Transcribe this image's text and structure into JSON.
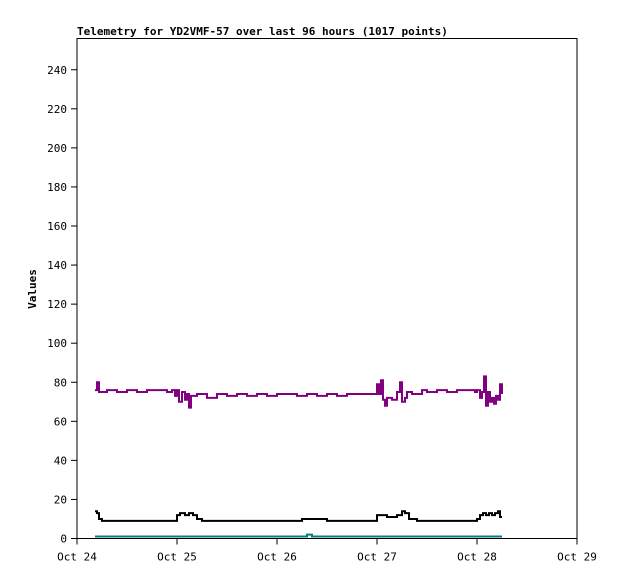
{
  "chart_data": {
    "type": "line",
    "title": "Telemetry for YD2VMF-57 over last 96 hours (1017 points)",
    "xlabel": "",
    "ylabel": "Values",
    "x_ticks": [
      "Oct 24",
      "Oct 25",
      "Oct 26",
      "Oct 27",
      "Oct 28",
      "Oct 29"
    ],
    "y_ticks": [
      0,
      20,
      40,
      60,
      80,
      100,
      120,
      140,
      160,
      180,
      200,
      220,
      240
    ],
    "xlim": [
      24.0,
      29.0
    ],
    "ylim": [
      0,
      256
    ],
    "grid": false,
    "legend": "none",
    "series": [
      {
        "color": "#800080",
        "points": [
          [
            24.18,
            76
          ],
          [
            24.2,
            80
          ],
          [
            24.22,
            75
          ],
          [
            24.3,
            76
          ],
          [
            24.4,
            75
          ],
          [
            24.5,
            76
          ],
          [
            24.6,
            75
          ],
          [
            24.7,
            76
          ],
          [
            24.8,
            76
          ],
          [
            24.9,
            75
          ],
          [
            24.95,
            76
          ],
          [
            24.98,
            73
          ],
          [
            25.0,
            76
          ],
          [
            25.02,
            70
          ],
          [
            25.05,
            75
          ],
          [
            25.08,
            71
          ],
          [
            25.1,
            74
          ],
          [
            25.12,
            67
          ],
          [
            25.14,
            73
          ],
          [
            25.16,
            73
          ],
          [
            25.2,
            74
          ],
          [
            25.3,
            72
          ],
          [
            25.4,
            74
          ],
          [
            25.5,
            73
          ],
          [
            25.6,
            74
          ],
          [
            25.7,
            73
          ],
          [
            25.8,
            74
          ],
          [
            25.9,
            73
          ],
          [
            26.0,
            74
          ],
          [
            26.1,
            74
          ],
          [
            26.2,
            73
          ],
          [
            26.3,
            74
          ],
          [
            26.4,
            73
          ],
          [
            26.5,
            74
          ],
          [
            26.6,
            73
          ],
          [
            26.7,
            74
          ],
          [
            26.8,
            74
          ],
          [
            26.9,
            74
          ],
          [
            26.97,
            74
          ],
          [
            27.0,
            79
          ],
          [
            27.02,
            74
          ],
          [
            27.04,
            81
          ],
          [
            27.06,
            71
          ],
          [
            27.08,
            68
          ],
          [
            27.1,
            72
          ],
          [
            27.15,
            71
          ],
          [
            27.2,
            75
          ],
          [
            27.23,
            80
          ],
          [
            27.25,
            70
          ],
          [
            27.28,
            72
          ],
          [
            27.3,
            75
          ],
          [
            27.35,
            74
          ],
          [
            27.4,
            74
          ],
          [
            27.45,
            76
          ],
          [
            27.5,
            75
          ],
          [
            27.6,
            76
          ],
          [
            27.7,
            75
          ],
          [
            27.8,
            76
          ],
          [
            27.9,
            76
          ],
          [
            27.98,
            75
          ],
          [
            28.0,
            76
          ],
          [
            28.03,
            72
          ],
          [
            28.05,
            75
          ],
          [
            28.07,
            83
          ],
          [
            28.09,
            68
          ],
          [
            28.11,
            75
          ],
          [
            28.13,
            70
          ],
          [
            28.15,
            72
          ],
          [
            28.17,
            69
          ],
          [
            28.19,
            73
          ],
          [
            28.21,
            71
          ],
          [
            28.23,
            79
          ],
          [
            28.25,
            74
          ]
        ]
      },
      {
        "color": "#000000",
        "points": [
          [
            24.18,
            14
          ],
          [
            24.2,
            13
          ],
          [
            24.22,
            10
          ],
          [
            24.25,
            9
          ],
          [
            24.3,
            9
          ],
          [
            24.35,
            9
          ],
          [
            24.4,
            9
          ],
          [
            24.5,
            9
          ],
          [
            24.6,
            9
          ],
          [
            24.7,
            9
          ],
          [
            24.8,
            9
          ],
          [
            24.9,
            9
          ],
          [
            24.98,
            9
          ],
          [
            25.0,
            12
          ],
          [
            25.03,
            13
          ],
          [
            25.08,
            12
          ],
          [
            25.12,
            13
          ],
          [
            25.16,
            12
          ],
          [
            25.2,
            10
          ],
          [
            25.25,
            9
          ],
          [
            25.3,
            9
          ],
          [
            25.4,
            9
          ],
          [
            25.5,
            9
          ],
          [
            25.6,
            9
          ],
          [
            25.7,
            9
          ],
          [
            25.8,
            9
          ],
          [
            25.9,
            9
          ],
          [
            26.0,
            9
          ],
          [
            26.1,
            9
          ],
          [
            26.2,
            9
          ],
          [
            26.25,
            10
          ],
          [
            26.3,
            10
          ],
          [
            26.4,
            10
          ],
          [
            26.5,
            9
          ],
          [
            26.6,
            9
          ],
          [
            26.7,
            9
          ],
          [
            26.8,
            9
          ],
          [
            26.9,
            9
          ],
          [
            27.0,
            12
          ],
          [
            27.05,
            12
          ],
          [
            27.1,
            11
          ],
          [
            27.15,
            11
          ],
          [
            27.2,
            12
          ],
          [
            27.25,
            14
          ],
          [
            27.28,
            13
          ],
          [
            27.32,
            10
          ],
          [
            27.4,
            9
          ],
          [
            27.5,
            9
          ],
          [
            27.6,
            9
          ],
          [
            27.7,
            9
          ],
          [
            27.8,
            9
          ],
          [
            27.9,
            9
          ],
          [
            28.0,
            10
          ],
          [
            28.03,
            12
          ],
          [
            28.06,
            13
          ],
          [
            28.09,
            12
          ],
          [
            28.12,
            13
          ],
          [
            28.15,
            12
          ],
          [
            28.18,
            13
          ],
          [
            28.21,
            14
          ],
          [
            28.23,
            11
          ],
          [
            28.25,
            11
          ]
        ]
      },
      {
        "color": "#008080",
        "points": [
          [
            24.18,
            1
          ],
          [
            24.5,
            1
          ],
          [
            25.0,
            1
          ],
          [
            25.5,
            1
          ],
          [
            26.0,
            1
          ],
          [
            26.3,
            2
          ],
          [
            26.35,
            1
          ],
          [
            26.5,
            1
          ],
          [
            27.0,
            1
          ],
          [
            27.5,
            1
          ],
          [
            28.0,
            1
          ],
          [
            28.25,
            1
          ]
        ]
      }
    ]
  }
}
